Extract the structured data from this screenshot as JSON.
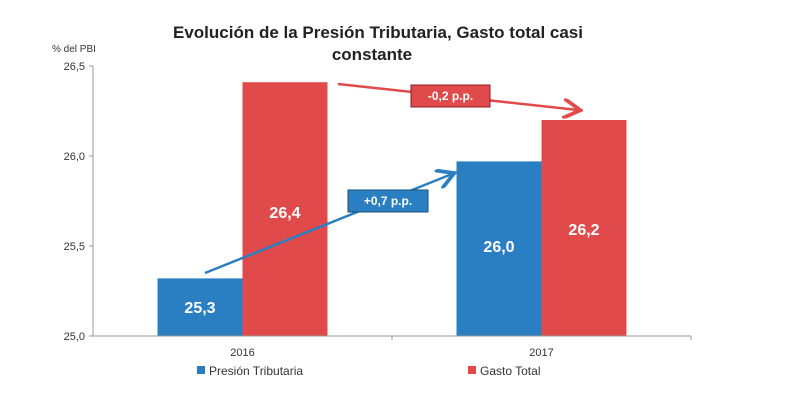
{
  "chart_data": {
    "type": "bar",
    "title": "Evolución de la Presión Tributaria, Gasto total casi constante",
    "title_lines": [
      "Evolución de la Presión Tributaria, Gasto total casi",
      "constante"
    ],
    "ylabel": "% del PBI",
    "xlabel": "",
    "categories": [
      "2016",
      "2017"
    ],
    "series": [
      {
        "name": "Presión Tributaria",
        "values": [
          25.32,
          25.97
        ],
        "labels": [
          "25,3",
          "26,0"
        ],
        "color": "#2a7fc2"
      },
      {
        "name": "Gasto Total",
        "values": [
          26.41,
          26.2
        ],
        "labels": [
          "26,4",
          "26,2"
        ],
        "color": "#e04a4a"
      }
    ],
    "ylim": [
      25.0,
      26.5
    ],
    "yticks": [
      25.0,
      25.5,
      26.0,
      26.5
    ],
    "ytick_labels": [
      "25,0",
      "25,5",
      "26,0",
      "26,5"
    ],
    "grid": false,
    "legend": "bottom",
    "annotations": [
      {
        "text": "+0,7 p.p.",
        "series": "Presión Tributaria",
        "color": "#2a7fc2"
      },
      {
        "text": "-0,2 p.p.",
        "series": "Gasto Total",
        "color": "#e04a4a"
      }
    ]
  }
}
